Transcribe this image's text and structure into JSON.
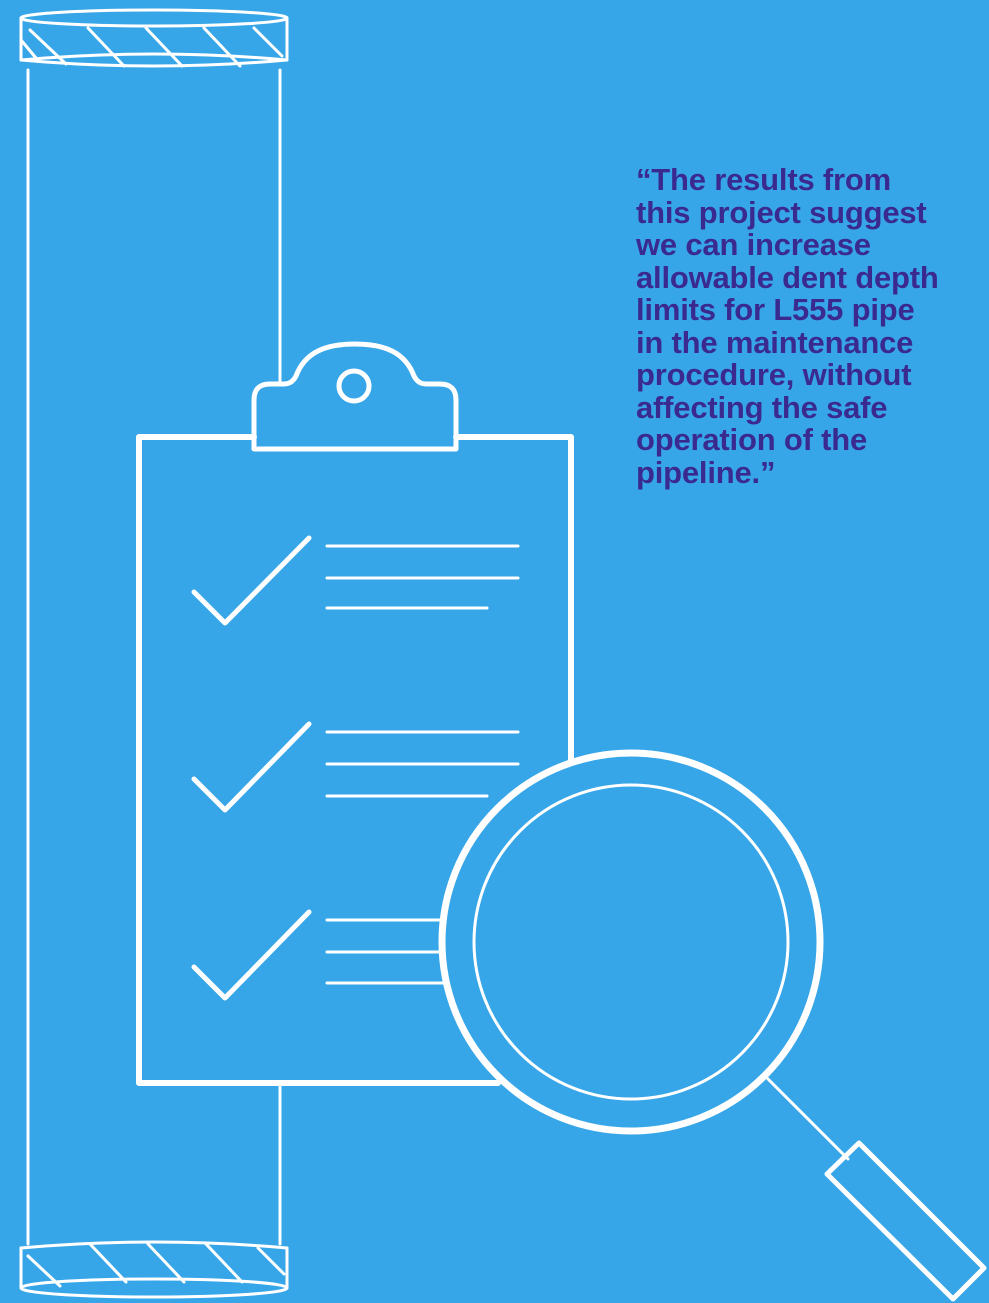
{
  "quote": {
    "text": "“The results from\nthis project suggest\nwe can increase\nallowable dent depth\nlimits for L555 pipe\nin the maintenance\nprocedure, without\naffecting the safe\noperation of the\npipeline.”"
  },
  "colors": {
    "background": "#37a6e8",
    "line_art": "#ffffff",
    "quote_text": "#3a2a8f"
  },
  "icons": [
    "pipe-icon",
    "clipboard-icon",
    "checkmark-icon",
    "magnifying-glass-icon"
  ]
}
